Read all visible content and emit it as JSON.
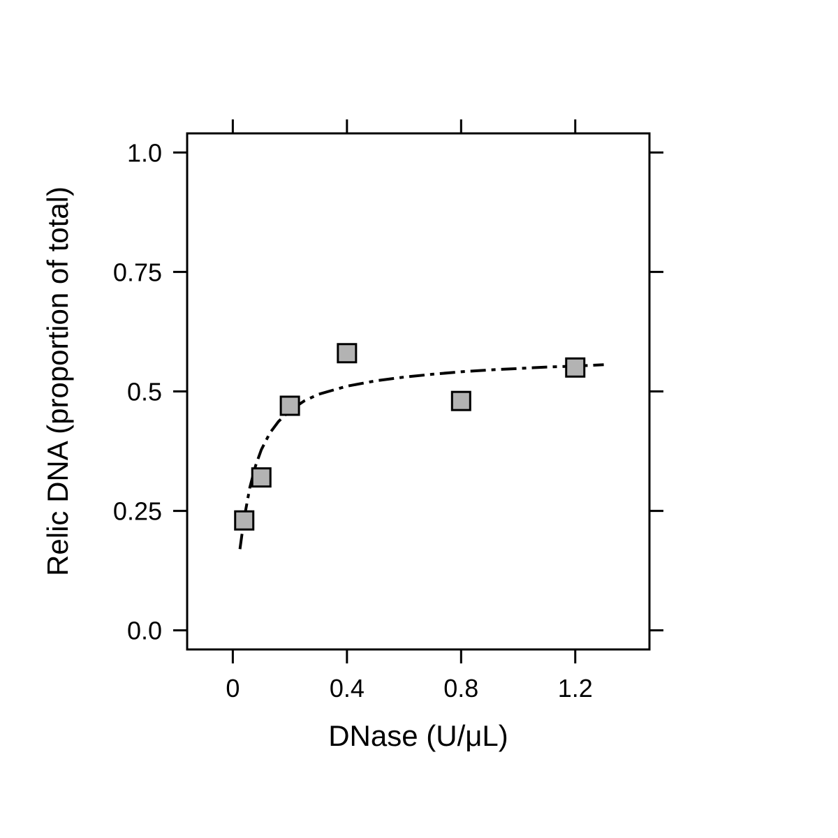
{
  "chart_data": {
    "type": "scatter",
    "title": "",
    "xlabel": "DNase (U/μL)",
    "ylabel": "Relic DNA (proportion of total)",
    "xlim": [
      -0.16,
      1.46
    ],
    "ylim": [
      -0.04,
      1.04
    ],
    "xticks": [
      0,
      0.4,
      0.8,
      1.2
    ],
    "xtick_labels": [
      "0",
      "0.4",
      "0.8",
      "1.2"
    ],
    "yticks": [
      0,
      0.25,
      0.5,
      0.75,
      1.0
    ],
    "ytick_labels": [
      "0.0",
      "0.25",
      "0.5",
      "0.75",
      "1.0"
    ],
    "grid": false,
    "legend": "none",
    "series": [
      {
        "marker": "square",
        "x": [
          0.04,
          0.1,
          0.2,
          0.4,
          0.8,
          1.2
        ],
        "y": [
          0.23,
          0.32,
          0.47,
          0.58,
          0.48,
          0.55
        ]
      }
    ],
    "fit_curve": {
      "style": "dashed",
      "x": [
        0.025,
        0.04,
        0.06,
        0.08,
        0.1,
        0.13,
        0.16,
        0.2,
        0.25,
        0.3,
        0.4,
        0.5,
        0.6,
        0.7,
        0.8,
        0.9,
        1.0,
        1.1,
        1.2,
        1.3
      ],
      "y": [
        0.17,
        0.235,
        0.3,
        0.345,
        0.378,
        0.413,
        0.437,
        0.46,
        0.48,
        0.494,
        0.511,
        0.522,
        0.53,
        0.536,
        0.541,
        0.545,
        0.548,
        0.551,
        0.553,
        0.556
      ]
    },
    "colors": {
      "marker_fill": "#b3b3b3",
      "marker_stroke": "#000000",
      "line": "#000000",
      "axis": "#000000"
    }
  }
}
